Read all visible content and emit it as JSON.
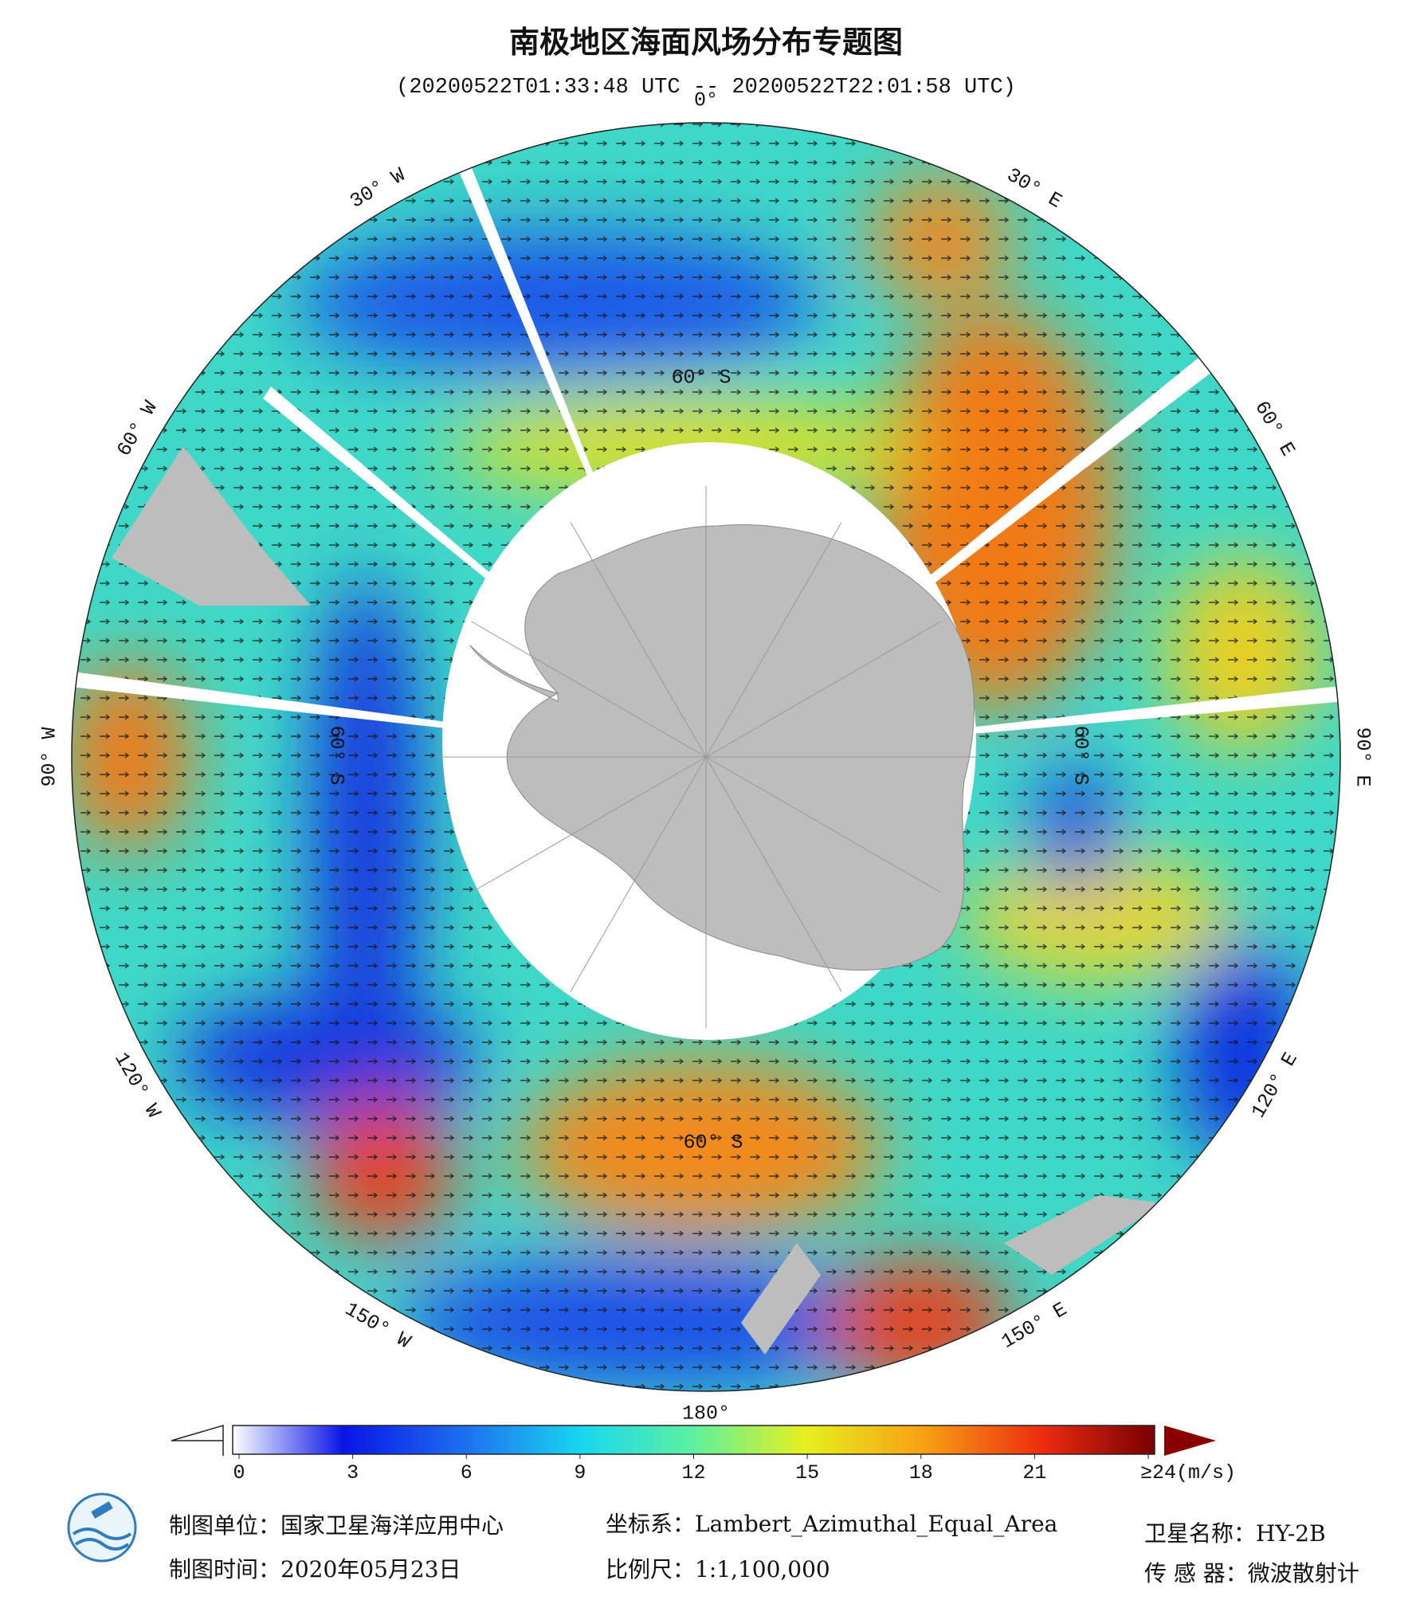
{
  "title": "南极地区海面风场分布专题图",
  "subtitle": "(20200522T01:33:48 UTC -- 20200522T22:01:58 UTC)",
  "map": {
    "longitude_labels": [
      "0°",
      "30° E",
      "60° E",
      "90° E",
      "120° E",
      "150° E",
      "180°",
      "150° W",
      "120° W",
      "90° W",
      "60° W",
      "30° W"
    ],
    "latitude_labels": [
      "60° S",
      "60° S",
      "60° S",
      "60° S"
    ]
  },
  "colorbar": {
    "range": [
      0,
      24
    ],
    "ticks": [
      0,
      3,
      6,
      9,
      12,
      15,
      18,
      21,
      {
        "value": 24,
        "label": "≥24(m/s)"
      }
    ]
  },
  "footer": {
    "producer": "制图单位：国家卫星海洋应用中心",
    "date": "制图时间：2020年05月23日",
    "projection": "坐标系：Lambert_Azimuthal_Equal_Area",
    "scale": "比例尺：1:1,100,000",
    "satellite": "卫星名称：HY-2B",
    "sensor": "传 感 器：微波散射计"
  }
}
